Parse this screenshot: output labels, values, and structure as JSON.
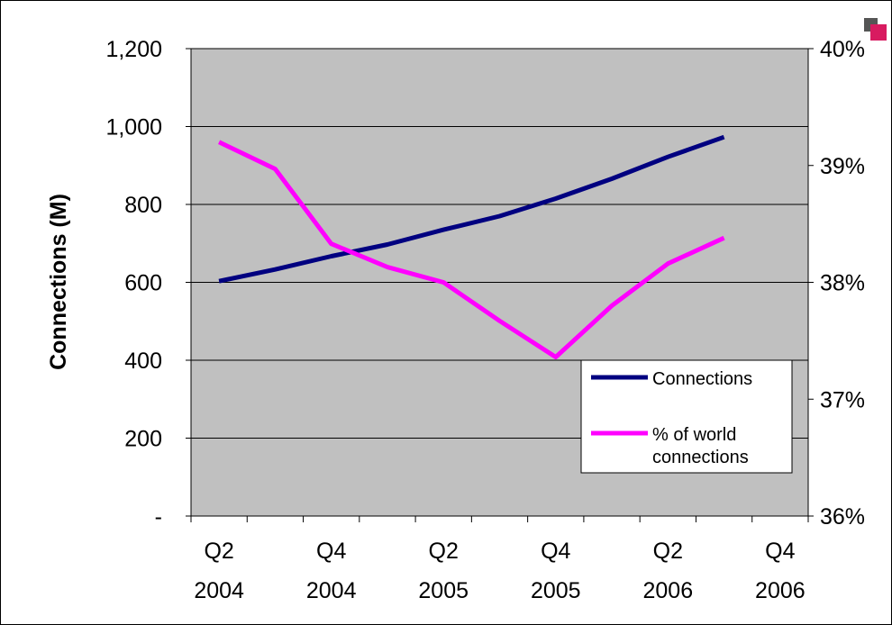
{
  "chart_data": {
    "type": "line",
    "title": "",
    "xlabel": "",
    "ylabel": "Connections (M)",
    "y_right_label": "",
    "categories": [
      "Q2 2004",
      "Q3 2004",
      "Q4 2004",
      "Q1 2005",
      "Q2 2005",
      "Q3 2005",
      "Q4 2005",
      "Q1 2006",
      "Q2 2006",
      "Q3 2006"
    ],
    "x_tick_labels": [
      {
        "line1": "Q2",
        "line2": "2004"
      },
      {
        "line1": "Q4",
        "line2": "2004"
      },
      {
        "line1": "Q2",
        "line2": "2005"
      },
      {
        "line1": "Q4",
        "line2": "2005"
      },
      {
        "line1": "Q2",
        "line2": "2006"
      },
      {
        "line1": "Q4",
        "line2": "2006"
      }
    ],
    "y_left_ticks": [
      "-",
      "200",
      "400",
      "600",
      "800",
      "1,000",
      "1,200"
    ],
    "y_right_ticks": [
      "36%",
      "37%",
      "38%",
      "39%",
      "40%"
    ],
    "ylim_left": [
      0,
      1200
    ],
    "ylim_right": [
      36,
      40
    ],
    "grid": true,
    "legend_position": "bottom-right",
    "series": [
      {
        "name": "Connections",
        "axis": "left",
        "color": "#000080",
        "values": [
          603,
          633,
          667,
          697,
          735,
          770,
          815,
          866,
          922,
          973
        ]
      },
      {
        "name": "% of  world connections",
        "axis": "right",
        "color": "#ff00ff",
        "values": [
          39.2,
          38.97,
          38.33,
          38.13,
          38.0,
          37.67,
          37.36,
          37.8,
          38.16,
          38.38
        ]
      }
    ],
    "legend": [
      {
        "lines": [
          "Connections"
        ]
      },
      {
        "lines": [
          "% of  world",
          "connections"
        ]
      }
    ],
    "colors": {
      "plot_bg": "#c0c0c0",
      "grid": "#000000",
      "corner_logo": "#d81b60"
    }
  }
}
